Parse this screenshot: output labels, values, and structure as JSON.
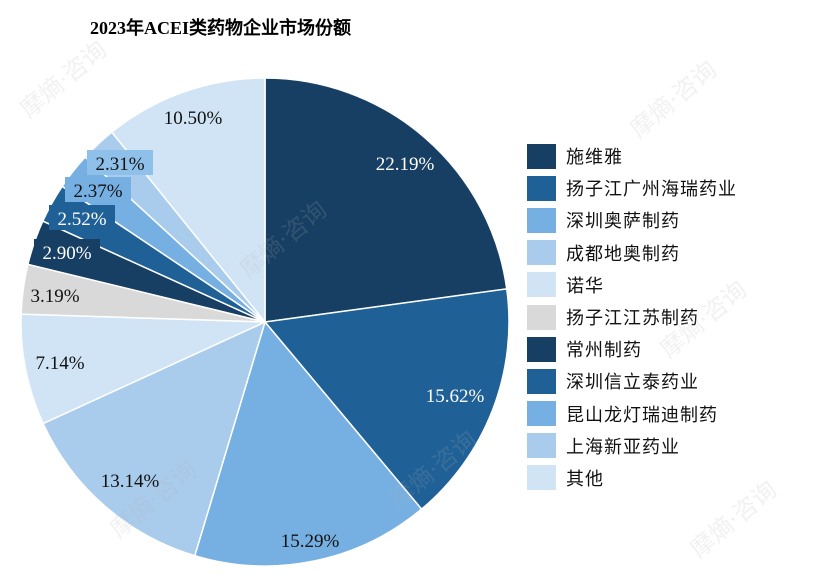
{
  "watermark": "摩熵·咨询",
  "chart_data": {
    "type": "pie",
    "title": "2023年ACEI类药物企业市场份额",
    "legend_placement": "right",
    "slices": [
      {
        "label": "施维雅",
        "value": 22.19,
        "display": "22.19%",
        "color": "#173f63"
      },
      {
        "label": "扬子江广州海瑞药业",
        "value": 15.62,
        "display": "15.62%",
        "color": "#1f6096"
      },
      {
        "label": "深圳奥萨制药",
        "value": 15.29,
        "display": "15.29%",
        "color": "#76b0e2"
      },
      {
        "label": "成都地奥制药",
        "value": 13.14,
        "display": "13.14%",
        "color": "#a9cbec"
      },
      {
        "label": "诺华",
        "value": 7.14,
        "display": "7.14%",
        "color": "#d0e4f6"
      },
      {
        "label": "扬子江江苏制药",
        "value": 3.19,
        "display": "3.19%",
        "color": "#d9d9d9"
      },
      {
        "label": "常州制药",
        "value": 2.9,
        "display": "2.90%",
        "color": "#173f63"
      },
      {
        "label": "深圳信立泰药业",
        "value": 2.52,
        "display": "2.52%",
        "color": "#1f6096"
      },
      {
        "label": "昆山龙灯瑞迪制药",
        "value": 2.37,
        "display": "2.37%",
        "color": "#76b0e2"
      },
      {
        "label": "上海新亚药业",
        "value": 2.31,
        "display": "2.31%",
        "color": "#a9cbec"
      },
      {
        "label": "其他",
        "value": 10.5,
        "display": "10.50%",
        "color": "#d0e4f6"
      }
    ]
  }
}
